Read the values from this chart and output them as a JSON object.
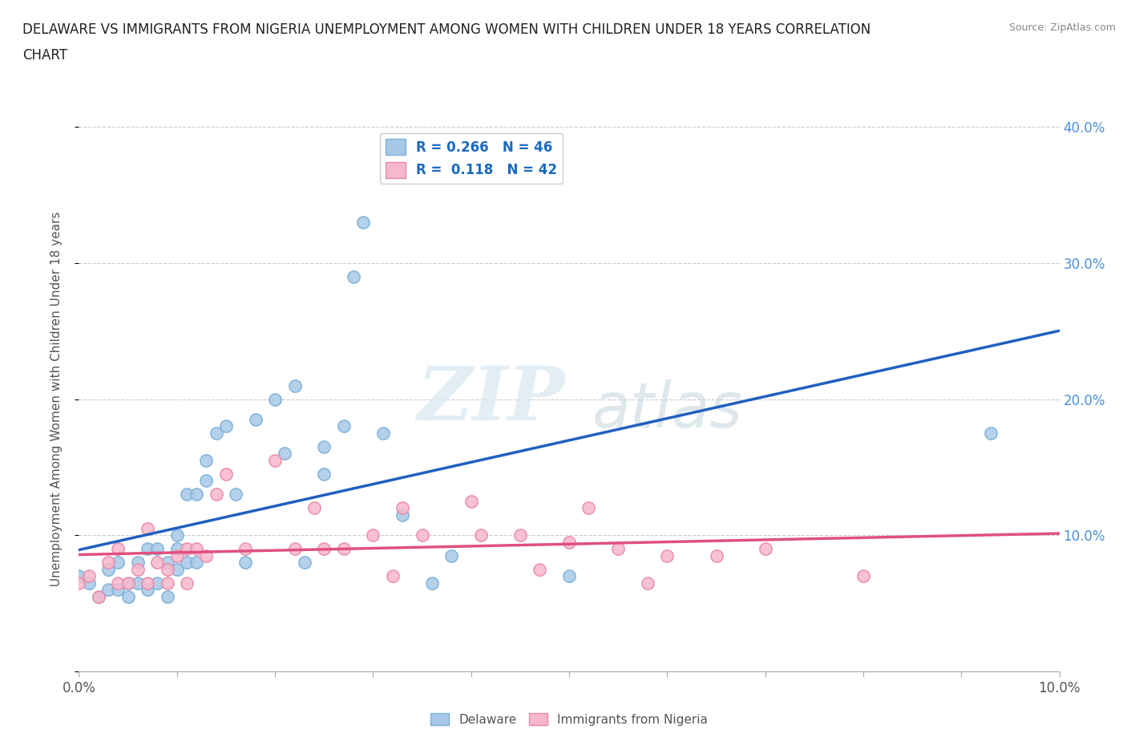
{
  "title_line1": "DELAWARE VS IMMIGRANTS FROM NIGERIA UNEMPLOYMENT AMONG WOMEN WITH CHILDREN UNDER 18 YEARS CORRELATION",
  "title_line2": "CHART",
  "source": "Source: ZipAtlas.com",
  "ylabel": "Unemployment Among Women with Children Under 18 years",
  "xlim": [
    0.0,
    0.1
  ],
  "ylim": [
    0.0,
    0.4
  ],
  "xticks": [
    0.0,
    0.01,
    0.02,
    0.03,
    0.04,
    0.05,
    0.06,
    0.07,
    0.08,
    0.09,
    0.1
  ],
  "yticks": [
    0.0,
    0.1,
    0.2,
    0.3,
    0.4
  ],
  "xticklabels": [
    "0.0%",
    "",
    "",
    "",
    "",
    "",
    "",
    "",
    "",
    "",
    "10.0%"
  ],
  "yticklabels_right": [
    "",
    "10.0%",
    "20.0%",
    "30.0%",
    "40.0%"
  ],
  "delaware_R": "0.266",
  "delaware_N": "46",
  "nigeria_R": "0.118",
  "nigeria_N": "42",
  "delaware_color": "#a8c8e8",
  "delaware_edge": "#7ab0d8",
  "nigeria_color": "#f8b8cc",
  "nigeria_edge": "#e888a8",
  "delaware_line_color": "#2060c0",
  "nigeria_line_color": "#e05080",
  "watermark_zip": "ZIP",
  "watermark_atlas": "atlas",
  "delaware_x": [
    0.0,
    0.001,
    0.002,
    0.003,
    0.003,
    0.004,
    0.004,
    0.005,
    0.005,
    0.006,
    0.006,
    0.007,
    0.007,
    0.008,
    0.008,
    0.009,
    0.009,
    0.01,
    0.01,
    0.01,
    0.011,
    0.011,
    0.012,
    0.012,
    0.013,
    0.013,
    0.014,
    0.015,
    0.016,
    0.017,
    0.018,
    0.02,
    0.021,
    0.022,
    0.023,
    0.025,
    0.025,
    0.027,
    0.028,
    0.029,
    0.031,
    0.033,
    0.036,
    0.038,
    0.05,
    0.093
  ],
  "delaware_y": [
    0.07,
    0.065,
    0.055,
    0.06,
    0.075,
    0.06,
    0.08,
    0.055,
    0.065,
    0.065,
    0.08,
    0.06,
    0.09,
    0.065,
    0.09,
    0.055,
    0.08,
    0.075,
    0.09,
    0.1,
    0.08,
    0.13,
    0.08,
    0.13,
    0.14,
    0.155,
    0.175,
    0.18,
    0.13,
    0.08,
    0.185,
    0.2,
    0.16,
    0.21,
    0.08,
    0.145,
    0.165,
    0.18,
    0.29,
    0.33,
    0.175,
    0.115,
    0.065,
    0.085,
    0.07,
    0.175
  ],
  "nigeria_x": [
    0.0,
    0.001,
    0.002,
    0.003,
    0.004,
    0.004,
    0.005,
    0.006,
    0.007,
    0.007,
    0.008,
    0.009,
    0.009,
    0.01,
    0.011,
    0.011,
    0.012,
    0.013,
    0.014,
    0.015,
    0.017,
    0.02,
    0.022,
    0.024,
    0.025,
    0.027,
    0.03,
    0.032,
    0.033,
    0.035,
    0.04,
    0.041,
    0.045,
    0.047,
    0.05,
    0.052,
    0.055,
    0.058,
    0.06,
    0.065,
    0.07,
    0.08
  ],
  "nigeria_y": [
    0.065,
    0.07,
    0.055,
    0.08,
    0.065,
    0.09,
    0.065,
    0.075,
    0.065,
    0.105,
    0.08,
    0.065,
    0.075,
    0.085,
    0.09,
    0.065,
    0.09,
    0.085,
    0.13,
    0.145,
    0.09,
    0.155,
    0.09,
    0.12,
    0.09,
    0.09,
    0.1,
    0.07,
    0.12,
    0.1,
    0.125,
    0.1,
    0.1,
    0.075,
    0.095,
    0.12,
    0.09,
    0.065,
    0.085,
    0.085,
    0.09,
    0.07
  ]
}
